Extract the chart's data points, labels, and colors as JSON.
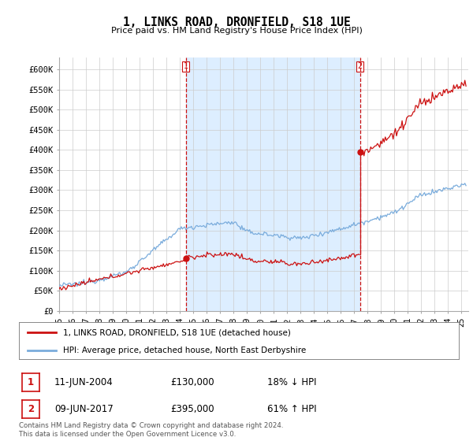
{
  "title": "1, LINKS ROAD, DRONFIELD, S18 1UE",
  "subtitle": "Price paid vs. HM Land Registry's House Price Index (HPI)",
  "ylabel_ticks": [
    "£0",
    "£50K",
    "£100K",
    "£150K",
    "£200K",
    "£250K",
    "£300K",
    "£350K",
    "£400K",
    "£450K",
    "£500K",
    "£550K",
    "£600K"
  ],
  "ytick_values": [
    0,
    50000,
    100000,
    150000,
    200000,
    250000,
    300000,
    350000,
    400000,
    450000,
    500000,
    550000,
    600000
  ],
  "ylim": [
    0,
    630000
  ],
  "xlim_start": 1995.0,
  "xlim_end": 2025.5,
  "plot_bg_color": "#ffffff",
  "shade_color": "#ddeeff",
  "grid_color": "#cccccc",
  "hpi_line_color": "#7aacdc",
  "price_line_color": "#cc1111",
  "marker1_date": 2004.44,
  "marker1_price": 130000,
  "marker1_label": "11-JUN-2004",
  "marker1_value_str": "£130,000",
  "marker1_pct": "18% ↓ HPI",
  "marker2_date": 2017.44,
  "marker2_price": 395000,
  "marker2_label": "09-JUN-2017",
  "marker2_value_str": "£395,000",
  "marker2_pct": "61% ↑ HPI",
  "vline_color": "#cc1111",
  "legend_label_price": "1, LINKS ROAD, DRONFIELD, S18 1UE (detached house)",
  "legend_label_hpi": "HPI: Average price, detached house, North East Derbyshire",
  "footer_text": "Contains HM Land Registry data © Crown copyright and database right 2024.\nThis data is licensed under the Open Government Licence v3.0.",
  "xtick_years": [
    1995,
    1996,
    1997,
    1998,
    1999,
    2000,
    2001,
    2002,
    2003,
    2004,
    2005,
    2006,
    2007,
    2008,
    2009,
    2010,
    2011,
    2012,
    2013,
    2014,
    2015,
    2016,
    2017,
    2018,
    2019,
    2020,
    2021,
    2022,
    2023,
    2024,
    2025
  ]
}
